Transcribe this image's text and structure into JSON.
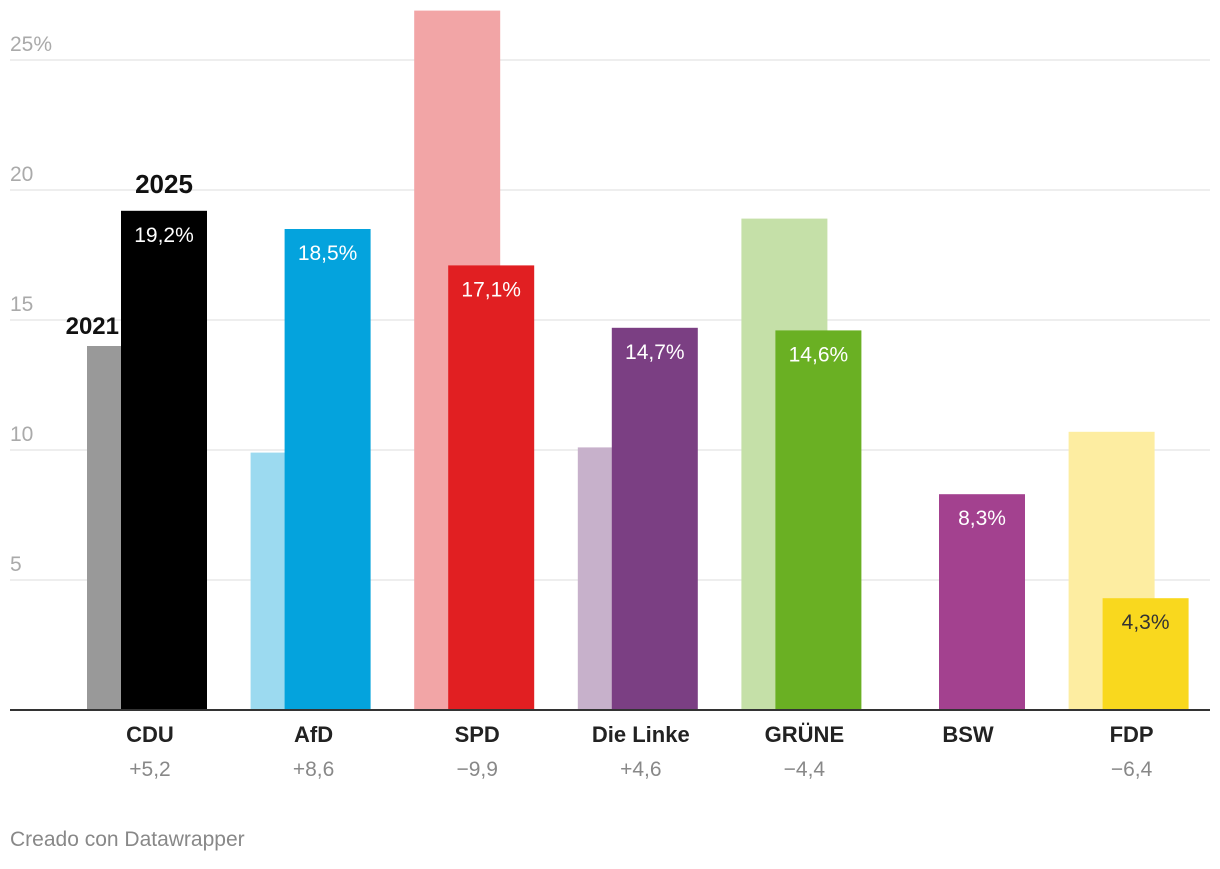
{
  "chart_data": {
    "type": "bar",
    "categories": [
      "CDU",
      "AfD",
      "SPD",
      "Die Linke",
      "GRÜNE",
      "BSW",
      "FDP"
    ],
    "change_labels": [
      "+5,2",
      "+8,6",
      "−9,9",
      "+4,6",
      "−4,4",
      "",
      "−6,4"
    ],
    "series": [
      {
        "name": "2021",
        "values": [
          14.0,
          9.9,
          26.9,
          10.1,
          18.9,
          null,
          10.7
        ],
        "colors": [
          "#999999",
          "#9cdaf0",
          "#f2a5a6",
          "#c7b1cb",
          "#c5e0a8",
          "#d5a4c9",
          "#fdeda1"
        ]
      },
      {
        "name": "2025",
        "values": [
          19.2,
          18.5,
          17.1,
          14.7,
          14.6,
          8.3,
          4.3
        ],
        "value_labels": [
          "19,2%",
          "18,5%",
          "17,1%",
          "14,7%",
          "14,6%",
          "8,3%",
          "4,3%"
        ],
        "colors": [
          "#000000",
          "#04a3dd",
          "#e11f22",
          "#7b3f83",
          "#6ab023",
          "#a3418f",
          "#f9d81e"
        ]
      }
    ],
    "yticks": [
      {
        "value": 5,
        "label": "5"
      },
      {
        "value": 10,
        "label": "10"
      },
      {
        "value": 15,
        "label": "15"
      },
      {
        "value": 20,
        "label": "20"
      },
      {
        "value": 25,
        "label": "25%"
      }
    ],
    "ylim": [
      0,
      27
    ],
    "grid": true,
    "title": "",
    "xlabel": "",
    "ylabel": ""
  },
  "credit": "Creado con Datawrapper"
}
